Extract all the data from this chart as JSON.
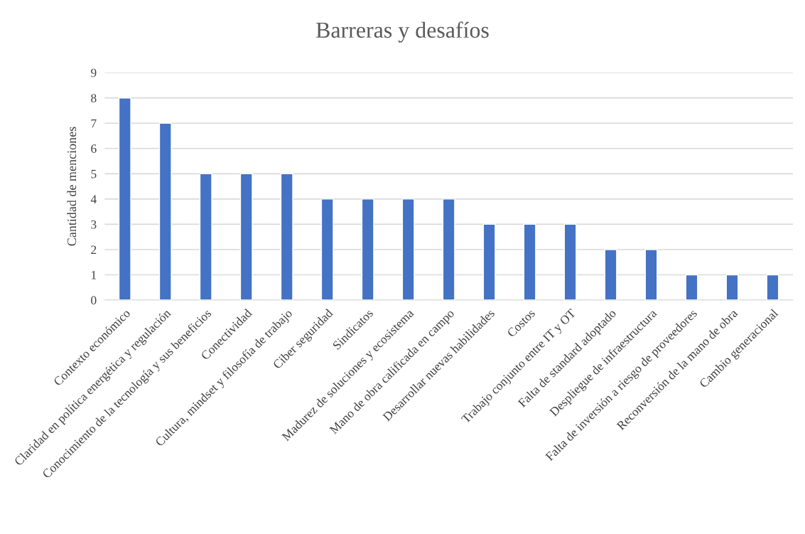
{
  "chart_data": {
    "type": "bar",
    "title": "Barreras y desafíos",
    "ylabel": "Cantidad de menciones",
    "categories": [
      "Contexto económico",
      "Claridad en política energética y regulación",
      "Conocimiento de la tecnología y sus beneficios",
      "Conectividad",
      "Cultura, mindset y filosofía de trabajo",
      "Ciber seguridad",
      "Sindicatos",
      "Madurez de soluciones y ecosistema",
      "Mano de obra calificada en campo",
      "Desarrollar nuevas habilidades",
      "Costos",
      "Trabajo conjunto entre IT y OT",
      "Falta de standard adoptado",
      "Despliegue de infraestructura",
      "Falta de inversión a riesgo de proveedores",
      "Reconversión de la mano de obra",
      "Cambio generacional"
    ],
    "values": [
      8,
      7,
      5,
      5,
      5,
      4,
      4,
      4,
      4,
      3,
      3,
      3,
      2,
      2,
      1,
      1,
      1
    ],
    "color": "#4472c4",
    "ylim": [
      0,
      9
    ],
    "yticks": [
      0,
      1,
      2,
      3,
      4,
      5,
      6,
      7,
      8,
      9
    ],
    "grid": "y"
  }
}
